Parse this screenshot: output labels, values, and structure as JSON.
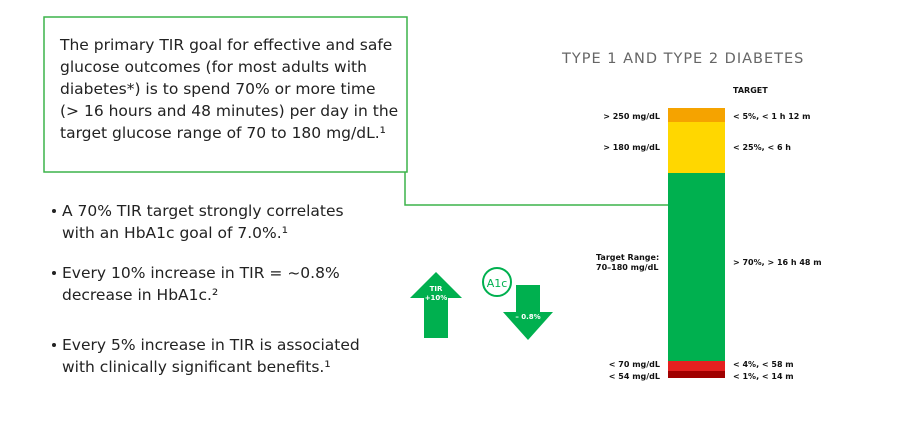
{
  "callout": {
    "lines": [
      "The primary TIR goal for effective and safe",
      "glucose outcomes (for most adults with",
      "diabetes*) is to spend 70% or more time",
      "(> 16 hours and 48 minutes) per day in the",
      "target glucose range of 70 to 180 mg/dL.¹"
    ]
  },
  "bullets": [
    {
      "lines": [
        "A 70% TIR target strongly correlates",
        "with an HbA1c goal of 7.0%.¹"
      ]
    },
    {
      "lines": [
        "Every 10% increase in TIR = ~0.8%",
        "decrease in HbA1c.²"
      ]
    },
    {
      "lines": [
        "Every 5% increase in TIR is associated",
        "with clinically significant benefits.¹"
      ]
    }
  ],
  "icons": {
    "tir_label": "TIR",
    "tir_change": "+10%",
    "a1c_label": "A1c",
    "a1c_change": "– 0.8%"
  },
  "panel": {
    "title": "TYPE 1 AND TYPE 2 DIABETES",
    "target_header": "TARGET",
    "ranges": [
      {
        "label": [
          "> 250 mg/dL"
        ],
        "target": "< 5%, < 1 h 12 m"
      },
      {
        "label": [
          "> 180 mg/dL"
        ],
        "target": "< 25%, < 6 h"
      },
      {
        "label": [
          "Target Range:",
          "70–180 mg/dL"
        ],
        "target": "> 70%, > 16 h 48 m"
      },
      {
        "label": [
          "< 70 mg/dL"
        ],
        "target": "< 4%, < 58 m"
      },
      {
        "label": [
          "< 54 mg/dL"
        ],
        "target": "< 1%, < 14 m"
      }
    ]
  }
}
